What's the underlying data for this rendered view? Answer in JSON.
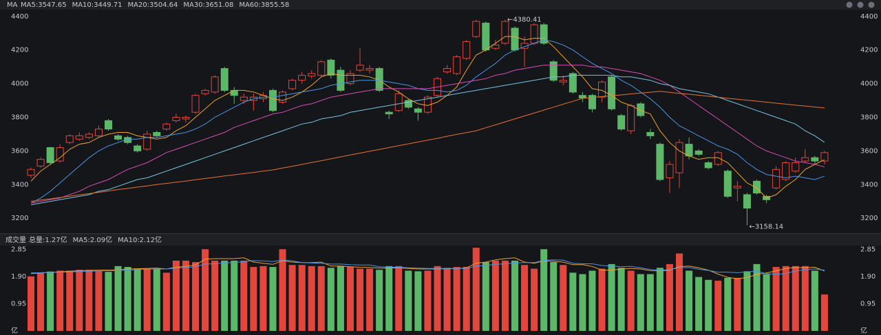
{
  "chart_data": [
    {
      "type": "candlestick",
      "title": "MA",
      "colors": {
        "up": "#e2473d",
        "down": "#5cb868"
      },
      "open": [
        3455,
        3510,
        3620,
        3540,
        3650,
        3670,
        3680,
        3690,
        3780,
        3690,
        3680,
        3630,
        3610,
        3710,
        3730,
        3780,
        3790,
        3830,
        3940,
        3950,
        4090,
        3960,
        3900,
        3900,
        3910,
        3960,
        3890,
        3970,
        4020,
        4045,
        4050,
        4140,
        4080,
        4000,
        4080,
        4080,
        4090,
        3830,
        3840,
        3900,
        3850,
        3830,
        3930,
        4070,
        4060,
        4150,
        4280,
        4360,
        4210,
        4240,
        4330,
        4210,
        4240,
        4350,
        4130,
        4010,
        4060,
        3930,
        3930,
        3920,
        4040,
        3810,
        3720,
        3880,
        3710,
        3640,
        3440,
        3470,
        3640,
        3600,
        3530,
        3520,
        3480,
        3380,
        3340,
        3420,
        3330,
        3380,
        3430,
        3480,
        3540,
        3560,
        3540
      ],
      "high": [
        3500,
        3560,
        3625,
        3640,
        3700,
        3710,
        3710,
        3750,
        3790,
        3700,
        3690,
        3640,
        3720,
        3720,
        3770,
        3820,
        3810,
        3940,
        3970,
        4050,
        4100,
        3980,
        3940,
        3940,
        3950,
        3970,
        3960,
        4030,
        4070,
        4080,
        4140,
        4150,
        4100,
        4080,
        4210,
        4110,
        4100,
        3840,
        3960,
        3910,
        3860,
        3930,
        4040,
        4110,
        4170,
        4260,
        4380,
        4370,
        4260,
        4380.41,
        4340,
        4280,
        4360,
        4360,
        4140,
        4050,
        4070,
        3950,
        3940,
        4020,
        4050,
        3820,
        3880,
        3890,
        3730,
        3650,
        3540,
        3670,
        3680,
        3610,
        3540,
        3600,
        3490,
        3420,
        3350,
        3430,
        3340,
        3510,
        3540,
        3560,
        3610,
        3570,
        3600
      ],
      "low": [
        3440,
        3500,
        3520,
        3530,
        3640,
        3660,
        3670,
        3680,
        3720,
        3660,
        3640,
        3590,
        3600,
        3680,
        3720,
        3770,
        3770,
        3820,
        3930,
        3940,
        3950,
        3880,
        3880,
        3840,
        3890,
        3830,
        3880,
        3960,
        4000,
        4030,
        4040,
        4030,
        3950,
        3990,
        4070,
        4060,
        3950,
        3790,
        3830,
        3850,
        3780,
        3820,
        3920,
        4060,
        4050,
        4140,
        4270,
        4190,
        4200,
        4230,
        4190,
        4100,
        4230,
        4230,
        4010,
        3990,
        3940,
        3890,
        3830,
        3890,
        3840,
        3720,
        3700,
        3800,
        3670,
        3420,
        3350,
        3380,
        3550,
        3570,
        3490,
        3510,
        3320,
        3300,
        3158.14,
        3340,
        3290,
        3370,
        3420,
        3470,
        3530,
        3520,
        3520
      ],
      "close": [
        3490,
        3550,
        3530,
        3620,
        3690,
        3690,
        3700,
        3730,
        3730,
        3670,
        3650,
        3600,
        3700,
        3690,
        3760,
        3800,
        3800,
        3930,
        3960,
        4040,
        3960,
        3930,
        3920,
        3920,
        3930,
        3840,
        3950,
        4020,
        4050,
        4060,
        4130,
        4050,
        3960,
        4060,
        4110,
        4090,
        3960,
        3820,
        3940,
        3860,
        3830,
        3920,
        4030,
        4090,
        4160,
        4250,
        4370,
        4200,
        4230,
        4370,
        4200,
        4240,
        4350,
        4240,
        4020,
        4020,
        3950,
        3915,
        3850,
        4010,
        3850,
        3730,
        3870,
        3810,
        3690,
        3430,
        3520,
        3650,
        3570,
        3580,
        3500,
        3590,
        3330,
        3390,
        3260,
        3350,
        3310,
        3490,
        3530,
        3530,
        3560,
        3540,
        3590
      ],
      "series": [
        {
          "name": "MA5:3547.65",
          "color": "#f0a22e",
          "values": [
            3420,
            3480,
            3520,
            3560,
            3610,
            3640,
            3650,
            3680,
            3700,
            3710,
            3710,
            3690,
            3680,
            3670,
            3680,
            3720,
            3750,
            3800,
            3850,
            3900,
            3930,
            3960,
            3960,
            3950,
            3930,
            3910,
            3900,
            3920,
            3950,
            3990,
            4040,
            4060,
            4050,
            4050,
            4050,
            4040,
            4020,
            3980,
            3950,
            3910,
            3880,
            3870,
            3890,
            3930,
            3980,
            4080,
            4170,
            4200,
            4240,
            4280,
            4280,
            4260,
            4270,
            4270,
            4220,
            4160,
            4100,
            4040,
            3970,
            3960,
            3930,
            3890,
            3870,
            3840,
            3820,
            3720,
            3650,
            3600,
            3570,
            3550,
            3560,
            3560,
            3530,
            3470,
            3410,
            3380,
            3320,
            3340,
            3390,
            3430,
            3490,
            3520,
            3547.65
          ]
        },
        {
          "name": "MA10:3449.71",
          "color": "#4a95e6",
          "values": [
            3290,
            3320,
            3360,
            3410,
            3460,
            3510,
            3560,
            3600,
            3630,
            3650,
            3670,
            3670,
            3680,
            3680,
            3690,
            3700,
            3710,
            3730,
            3760,
            3800,
            3830,
            3860,
            3890,
            3910,
            3920,
            3920,
            3930,
            3940,
            3950,
            3960,
            3970,
            3990,
            4000,
            4010,
            4020,
            4020,
            4020,
            4010,
            4000,
            3990,
            3970,
            3960,
            3960,
            3950,
            3960,
            3990,
            4040,
            4080,
            4120,
            4170,
            4200,
            4220,
            4240,
            4260,
            4250,
            4230,
            4200,
            4160,
            4120,
            4090,
            4060,
            4020,
            3990,
            3950,
            3910,
            3860,
            3800,
            3750,
            3720,
            3690,
            3660,
            3630,
            3610,
            3580,
            3530,
            3490,
            3460,
            3450,
            3440,
            3450,
            3440,
            3430,
            3449.71
          ]
        },
        {
          "name": "MA20:3504.64",
          "color": "#d94bb4",
          "values": [
            3290,
            3300,
            3310,
            3320,
            3340,
            3360,
            3390,
            3410,
            3430,
            3460,
            3490,
            3510,
            3530,
            3560,
            3590,
            3610,
            3630,
            3650,
            3670,
            3690,
            3710,
            3740,
            3760,
            3780,
            3800,
            3820,
            3830,
            3850,
            3870,
            3880,
            3900,
            3920,
            3930,
            3940,
            3950,
            3960,
            3970,
            3970,
            3970,
            3970,
            3970,
            3970,
            3980,
            3990,
            4000,
            4010,
            4020,
            4030,
            4050,
            4060,
            4080,
            4090,
            4100,
            4110,
            4110,
            4110,
            4110,
            4110,
            4100,
            4100,
            4090,
            4080,
            4070,
            4060,
            4040,
            4020,
            3990,
            3950,
            3910,
            3870,
            3830,
            3790,
            3750,
            3710,
            3670,
            3630,
            3600,
            3580,
            3560,
            3540,
            3530,
            3520,
            3504.64
          ]
        },
        {
          "name": "MA30:3651.08",
          "color": "#74c6e4",
          "values": [
            3280,
            3290,
            3300,
            3310,
            3320,
            3330,
            3340,
            3360,
            3370,
            3390,
            3410,
            3430,
            3440,
            3460,
            3480,
            3500,
            3520,
            3540,
            3560,
            3580,
            3600,
            3620,
            3640,
            3660,
            3680,
            3700,
            3720,
            3740,
            3760,
            3770,
            3790,
            3800,
            3810,
            3830,
            3840,
            3850,
            3860,
            3870,
            3880,
            3890,
            3900,
            3910,
            3920,
            3930,
            3940,
            3950,
            3960,
            3970,
            3980,
            3990,
            4000,
            4010,
            4020,
            4030,
            4040,
            4040,
            4050,
            4050,
            4050,
            4050,
            4050,
            4040,
            4040,
            4030,
            4020,
            4000,
            3990,
            3970,
            3960,
            3950,
            3940,
            3920,
            3900,
            3880,
            3860,
            3840,
            3820,
            3800,
            3780,
            3760,
            3720,
            3690,
            3651.08
          ]
        },
        {
          "name": "MA60:3855.58",
          "color": "#e8722c",
          "values": [
            3300,
            3308,
            3315,
            3323,
            3331,
            3339,
            3346,
            3354,
            3362,
            3370,
            3377,
            3385,
            3392,
            3400,
            3407,
            3414,
            3421,
            3429,
            3436,
            3443,
            3451,
            3458,
            3465,
            3472,
            3480,
            3487,
            3498,
            3509,
            3520,
            3531,
            3542,
            3553,
            3565,
            3576,
            3587,
            3598,
            3609,
            3620,
            3631,
            3642,
            3653,
            3664,
            3675,
            3687,
            3698,
            3709,
            3720,
            3738,
            3755,
            3773,
            3790,
            3808,
            3825,
            3843,
            3860,
            3878,
            3895,
            3913,
            3918,
            3923,
            3928,
            3933,
            3939,
            3944,
            3949,
            3954,
            3948,
            3942,
            3937,
            3931,
            3925,
            3919,
            3913,
            3907,
            3902,
            3896,
            3890,
            3884,
            3878,
            3872,
            3867,
            3861,
            3855.58
          ]
        }
      ],
      "annotations": [
        "←4380.41",
        "←3158.14"
      ],
      "ylim": [
        3115,
        4440
      ],
      "yticks": [
        3200,
        3400,
        3600,
        3800,
        4000,
        4200,
        4400
      ]
    },
    {
      "type": "bar",
      "title": "成交量",
      "subtitle": "总量:1.27亿",
      "values": [
        1.9,
        2.03,
        2.07,
        2.1,
        2.1,
        2.13,
        2.13,
        2.1,
        2.06,
        2.26,
        2.23,
        2.17,
        2.17,
        2.17,
        2.03,
        2.45,
        2.45,
        2.4,
        2.85,
        2.45,
        2.45,
        2.45,
        2.45,
        2.23,
        2.26,
        2.23,
        2.85,
        2.3,
        2.3,
        2.26,
        2.26,
        2.2,
        2.26,
        2.23,
        2.17,
        2.17,
        2.13,
        2.26,
        2.26,
        2.1,
        2.08,
        2.1,
        2.26,
        2.2,
        2.23,
        2.23,
        2.9,
        2.4,
        2.45,
        2.45,
        2.45,
        2.3,
        2.17,
        2.85,
        2.4,
        2.3,
        2.03,
        1.98,
        2.1,
        2.17,
        2.33,
        2.2,
        2.1,
        1.98,
        1.98,
        2.2,
        2.33,
        2.7,
        2.1,
        1.88,
        1.78,
        1.75,
        1.85,
        1.85,
        2.08,
        2.33,
        1.98,
        2.23,
        2.26,
        2.26,
        2.26,
        2.1,
        1.27
      ],
      "series": [
        {
          "name": "MA5:2.09亿",
          "color": "#f0a22e",
          "values": [
            2.0,
            2.02,
            2.04,
            2.06,
            2.08,
            2.1,
            2.11,
            2.12,
            2.12,
            2.13,
            2.16,
            2.17,
            2.18,
            2.19,
            2.16,
            2.22,
            2.25,
            2.3,
            2.5,
            2.52,
            2.52,
            2.52,
            2.55,
            2.4,
            2.36,
            2.32,
            2.45,
            2.4,
            2.38,
            2.38,
            2.4,
            2.26,
            2.26,
            2.24,
            2.22,
            2.21,
            2.19,
            2.19,
            2.2,
            2.18,
            2.16,
            2.16,
            2.16,
            2.17,
            2.17,
            2.2,
            2.36,
            2.4,
            2.48,
            2.52,
            2.55,
            2.4,
            2.36,
            2.44,
            2.43,
            2.4,
            2.31,
            2.31,
            2.25,
            2.12,
            2.12,
            2.16,
            2.18,
            2.16,
            2.1,
            2.09,
            2.12,
            2.24,
            2.26,
            2.2,
            2.12,
            1.98,
            1.87,
            1.82,
            1.86,
            1.97,
            2.02,
            2.09,
            2.18,
            2.21,
            2.2,
            2.22,
            2.09
          ]
        },
        {
          "name": "MA10:2.12亿",
          "color": "#4a95e6",
          "values": [
            2.02,
            2.03,
            2.04,
            2.05,
            2.06,
            2.07,
            2.08,
            2.09,
            2.1,
            2.11,
            2.12,
            2.14,
            2.15,
            2.16,
            2.16,
            2.19,
            2.21,
            2.24,
            2.33,
            2.34,
            2.37,
            2.38,
            2.42,
            2.45,
            2.44,
            2.42,
            2.48,
            2.44,
            2.38,
            2.37,
            2.36,
            2.33,
            2.33,
            2.31,
            2.3,
            2.3,
            2.24,
            2.22,
            2.22,
            2.2,
            2.19,
            2.18,
            2.18,
            2.18,
            2.18,
            2.18,
            2.26,
            2.28,
            2.32,
            2.34,
            2.37,
            2.38,
            2.38,
            2.46,
            2.48,
            2.47,
            2.36,
            2.34,
            2.34,
            2.28,
            2.26,
            2.24,
            2.25,
            2.2,
            2.14,
            2.11,
            2.14,
            2.2,
            2.21,
            2.15,
            2.11,
            2.05,
            2.05,
            2.03,
            2.06,
            2.08,
            2.0,
            1.97,
            2.0,
            2.09,
            2.13,
            2.16,
            2.12
          ]
        }
      ],
      "ylim": [
        0,
        3.0
      ],
      "yticks": [
        {
          "value": 0,
          "label": "亿"
        },
        0.95,
        {
          "value": 1.9,
          "label": "1.90"
        },
        2.85
      ]
    }
  ]
}
